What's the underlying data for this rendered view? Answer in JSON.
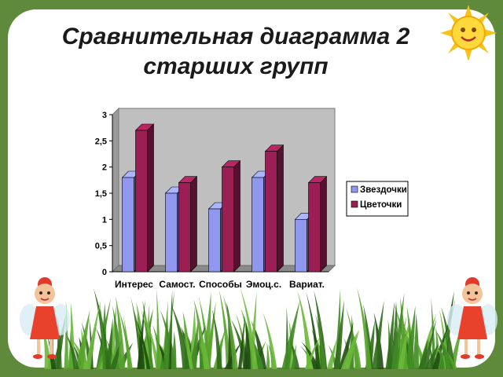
{
  "slide": {
    "title": "Сравнительная диаграмма 2 старших групп",
    "colors": {
      "background": "#5f8a3b",
      "panel": "#ffffff",
      "plot_back": "#bfbfbf",
      "series1": "#8f98ee",
      "series2": "#9b1f55"
    },
    "decorations": [
      "sun-icon",
      "fairy-left",
      "fairy-right",
      "grass"
    ]
  },
  "chart_data": {
    "type": "bar",
    "title": "",
    "xlabel": "",
    "ylabel": "",
    "categories": [
      "Интерес",
      "Самост.",
      "Способы",
      "Эмоц.с.",
      "Вариат."
    ],
    "series": [
      {
        "name": "Звездочки",
        "values": [
          1.8,
          1.5,
          1.2,
          1.8,
          1.0
        ]
      },
      {
        "name": "Цветочки",
        "values": [
          2.7,
          1.7,
          2.0,
          2.3,
          1.7
        ]
      }
    ],
    "ylim": [
      0,
      3
    ],
    "yticks": [
      "0",
      "0,5",
      "1",
      "1,5",
      "2",
      "2,5",
      "3"
    ],
    "grid": false,
    "legend_position": "right",
    "style": "3d-bar"
  }
}
